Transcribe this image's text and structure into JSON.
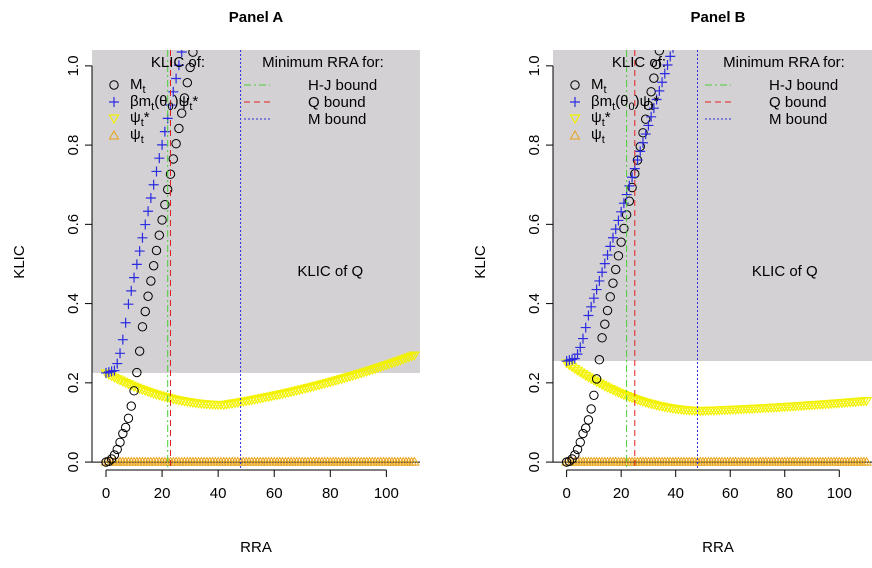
{
  "chart_data": [
    {
      "type": "scatter",
      "panel_title": "Panel A",
      "xlabel": "RRA",
      "ylabel": "KLIC",
      "xlim": [
        -5,
        112
      ],
      "ylim": [
        -0.02,
        1.04
      ],
      "x_ticks": [
        0,
        20,
        40,
        60,
        80,
        100
      ],
      "x_tick_labels": [
        "0",
        "20",
        "40",
        "60",
        "80",
        "100"
      ],
      "y_ticks": [
        0.0,
        0.2,
        0.4,
        0.6,
        0.8,
        1.0
      ],
      "y_tick_labels": [
        "0.0",
        "0.2",
        "0.4",
        "0.6",
        "0.8",
        "1.0"
      ],
      "shaded_region_ymin": 0.225,
      "shaded_region_label": "KLIC of Q",
      "legend_title_klic": "KLIC of:",
      "legend_title_rra": "Minimum RRA for:",
      "series_params": {
        "Mt": {
          "x_end": 54,
          "y0": 0.0,
          "slope": 0.0385,
          "break": 3
        },
        "beta": {
          "x_end": 47,
          "y0": 0.225,
          "slope": 0.0335,
          "break": 3
        },
        "psi_star": {
          "x_end": 110,
          "y0": 0.225,
          "min_x": 42,
          "min_y": 0.145,
          "end_y": 0.27
        },
        "psi": {
          "x_end": 110,
          "y": 0.0
        }
      },
      "bounds": {
        "hj": 22,
        "q": 23,
        "m": 48
      }
    },
    {
      "type": "scatter",
      "panel_title": "Panel B",
      "xlabel": "RRA",
      "ylabel": "KLIC",
      "xlim": [
        -5,
        112
      ],
      "ylim": [
        -0.02,
        1.04
      ],
      "x_ticks": [
        0,
        20,
        40,
        60,
        80,
        100
      ],
      "x_tick_labels": [
        "0",
        "20",
        "40",
        "60",
        "80",
        "100"
      ],
      "y_ticks": [
        0.0,
        0.2,
        0.4,
        0.6,
        0.8,
        1.0
      ],
      "y_tick_labels": [
        "0.0",
        "0.2",
        "0.4",
        "0.6",
        "0.8",
        "1.0"
      ],
      "shaded_region_ymin": 0.255,
      "shaded_region_label": "KLIC of Q",
      "legend_title_klic": "KLIC of:",
      "legend_title_rra": "Minimum RRA for:",
      "series_params": {
        "Mt": {
          "x_end": 56,
          "y0": 0.0,
          "slope": 0.0345,
          "break": 3
        },
        "beta": {
          "x_end": 60,
          "y0": 0.255,
          "slope": 0.0218,
          "break": 3
        },
        "psi_star": {
          "x_end": 110,
          "y0": 0.25,
          "min_x": 50,
          "min_y": 0.13,
          "end_y": 0.155
        },
        "psi": {
          "x_end": 110,
          "y": 0.0
        }
      },
      "bounds": {
        "hj": 22,
        "q": 25,
        "m": 48
      }
    }
  ],
  "legend_labels": {
    "mt": "M",
    "mt_sub": "t",
    "beta_pre": "βm",
    "beta_sub1": "t",
    "beta_mid": "(θ",
    "beta_sub2": "0",
    "beta_mid2": ")ψ",
    "beta_sub3": "t",
    "beta_post": "*",
    "psi_star": "ψ",
    "psi_star_sub": "t",
    "psi_star_post": "*",
    "psi": "ψ",
    "psi_sub": "t",
    "hj": "H-J bound",
    "q": "Q bound",
    "m": "M bound"
  },
  "colors": {
    "shade": "#d3d1d4",
    "mt": "#000000",
    "beta": "#2b2be0",
    "psi_star": "#f2f200",
    "psi": "#e8a317",
    "hj": "#4ccc3a",
    "q": "#e02020",
    "m": "#2b2be0"
  }
}
